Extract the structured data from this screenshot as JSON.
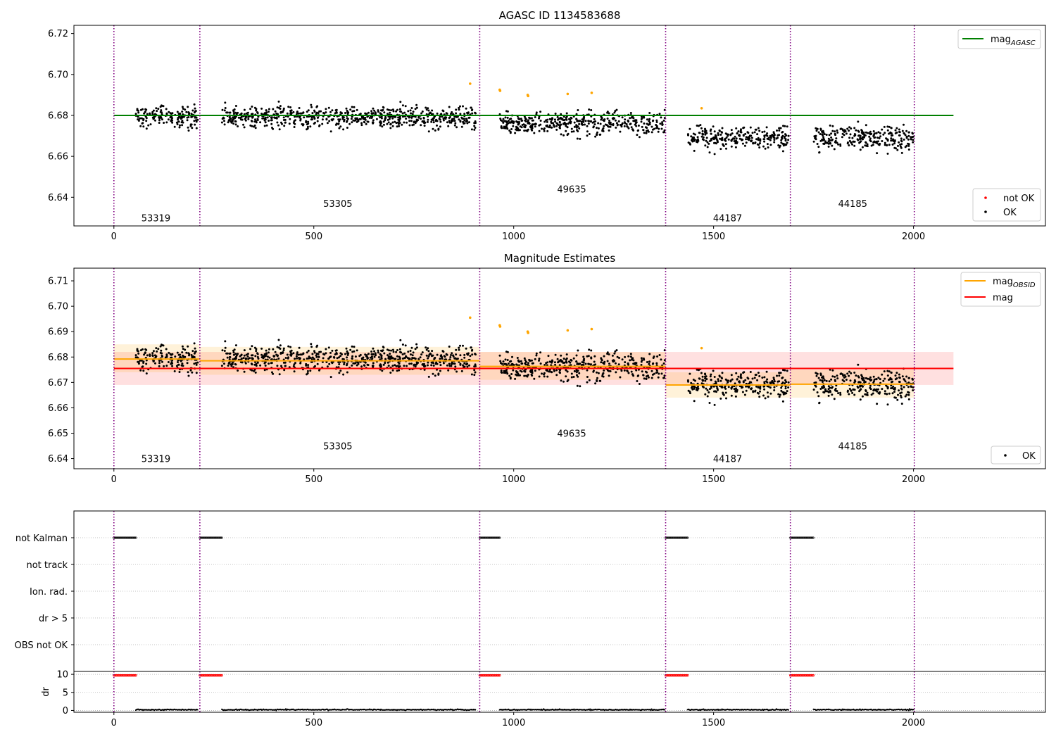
{
  "chart_data": [
    {
      "type": "scatter",
      "title": "AGASC ID 1134583688",
      "xlim": [
        -100,
        2330
      ],
      "ylim": [
        6.626,
        6.724
      ],
      "x_ticks": [
        0,
        500,
        1000,
        1500,
        2000
      ],
      "y_ticks": [
        6.64,
        6.66,
        6.68,
        6.7,
        6.72
      ],
      "obsid_boundaries": [
        0,
        215,
        915,
        1380,
        1692,
        2002
      ],
      "obsid_labels": [
        {
          "text": "53319",
          "x": 105,
          "y": 6.63
        },
        {
          "text": "53305",
          "x": 560,
          "y": 6.637
        },
        {
          "text": "49635",
          "x": 1145,
          "y": 6.644
        },
        {
          "text": "44187",
          "x": 1535,
          "y": 6.63
        },
        {
          "text": "44185",
          "x": 1848,
          "y": 6.637
        }
      ],
      "mag_agasc": {
        "name": "mag_AGASC",
        "value": 6.68,
        "x_range": [
          0,
          2100
        ],
        "color": "#008000"
      },
      "ok_segments": [
        {
          "x": [
            55,
            210
          ],
          "y": 6.679,
          "spread": 0.0045
        },
        {
          "x": [
            270,
            905
          ],
          "y": 6.679,
          "spread": 0.0045
        },
        {
          "x": [
            965,
            1378
          ],
          "y": 6.676,
          "spread": 0.0045
        },
        {
          "x": [
            1435,
            1688
          ],
          "y": 6.669,
          "spread": 0.0045
        },
        {
          "x": [
            1750,
            2000
          ],
          "y": 6.669,
          "spread": 0.0045
        }
      ],
      "not_ok_points": [
        [
          891,
          6.6955
        ],
        [
          965,
          6.6925
        ],
        [
          966,
          6.692
        ],
        [
          1035,
          6.69
        ],
        [
          1036,
          6.6895
        ],
        [
          1135,
          6.6905
        ],
        [
          1195,
          6.691
        ],
        [
          1470,
          6.6835
        ]
      ],
      "legend": [
        {
          "label": "mag",
          "sub": "AGASC",
          "kind": "line",
          "color": "#008000"
        },
        {
          "label": "not OK",
          "kind": "dot",
          "color": "#ff0000"
        },
        {
          "label": "OK",
          "kind": "dot",
          "color": "#000000"
        }
      ]
    },
    {
      "type": "scatter",
      "title": "Magnitude Estimates",
      "xlim": [
        -100,
        2330
      ],
      "ylim": [
        6.636,
        6.715
      ],
      "x_ticks": [
        0,
        500,
        1000,
        1500,
        2000
      ],
      "y_ticks": [
        6.64,
        6.65,
        6.66,
        6.67,
        6.68,
        6.69,
        6.7,
        6.71
      ],
      "obsid_boundaries": [
        0,
        215,
        915,
        1380,
        1692,
        2002
      ],
      "obsid_labels": [
        {
          "text": "53319",
          "x": 105,
          "y": 6.64
        },
        {
          "text": "53305",
          "x": 560,
          "y": 6.645
        },
        {
          "text": "49635",
          "x": 1145,
          "y": 6.65
        },
        {
          "text": "44187",
          "x": 1535,
          "y": 6.64
        },
        {
          "text": "44185",
          "x": 1848,
          "y": 6.645
        }
      ],
      "mag": {
        "name": "mag",
        "value": 6.6755,
        "band": [
          6.669,
          6.682
        ],
        "x_range": [
          0,
          2100
        ],
        "color": "#ff0000"
      },
      "mag_obsid": [
        {
          "x": [
            0,
            215
          ],
          "value": 6.6792,
          "band": [
            6.674,
            6.685
          ]
        },
        {
          "x": [
            215,
            915
          ],
          "value": 6.6785,
          "band": [
            6.673,
            6.684
          ]
        },
        {
          "x": [
            915,
            1380
          ],
          "value": 6.6763,
          "band": [
            6.671,
            6.682
          ]
        },
        {
          "x": [
            1380,
            1692
          ],
          "value": 6.669,
          "band": [
            6.664,
            6.674
          ]
        },
        {
          "x": [
            1692,
            2002
          ],
          "value": 6.6693,
          "band": [
            6.664,
            6.675
          ]
        }
      ],
      "ok_segments": [
        {
          "x": [
            55,
            210
          ],
          "y": 6.679,
          "spread": 0.0045
        },
        {
          "x": [
            270,
            905
          ],
          "y": 6.679,
          "spread": 0.0045
        },
        {
          "x": [
            965,
            1378
          ],
          "y": 6.676,
          "spread": 0.0045
        },
        {
          "x": [
            1435,
            1688
          ],
          "y": 6.669,
          "spread": 0.0045
        },
        {
          "x": [
            1750,
            2000
          ],
          "y": 6.669,
          "spread": 0.0045
        }
      ],
      "not_ok_points": [
        [
          891,
          6.6955
        ],
        [
          965,
          6.6925
        ],
        [
          966,
          6.692
        ],
        [
          1035,
          6.69
        ],
        [
          1036,
          6.6895
        ],
        [
          1135,
          6.6905
        ],
        [
          1195,
          6.691
        ],
        [
          1470,
          6.6835
        ]
      ],
      "legend": [
        {
          "label": "mag",
          "sub": "OBSID",
          "kind": "line",
          "color": "#ffa500"
        },
        {
          "label": "mag",
          "kind": "line",
          "color": "#ff0000"
        },
        {
          "label": "OK",
          "kind": "dot",
          "color": "#000000"
        }
      ]
    },
    {
      "type": "scatter",
      "xlim": [
        -100,
        2330
      ],
      "x_ticks": [
        0,
        500,
        1000,
        1500,
        2000
      ],
      "obsid_boundaries": [
        0,
        215,
        915,
        1380,
        1692,
        2002
      ],
      "flag_rows": [
        "not Kalman",
        "not track",
        "Ion. rad.",
        "dr > 5",
        "OBS not OK"
      ],
      "not_kalman_segments": [
        [
          0,
          55
        ],
        [
          215,
          270
        ],
        [
          915,
          965
        ],
        [
          1380,
          1435
        ],
        [
          1692,
          1750
        ]
      ]
    },
    {
      "type": "scatter",
      "ylabel": "dr",
      "xlim": [
        -100,
        2330
      ],
      "ylim": [
        -0.5,
        10.8
      ],
      "x_ticks": [
        0,
        500,
        1000,
        1500,
        2000
      ],
      "y_ticks": [
        0,
        5,
        10
      ],
      "obsid_boundaries": [
        0,
        215,
        915,
        1380,
        1692,
        2002
      ],
      "high_dr": {
        "value": 9.7,
        "segments": [
          [
            0,
            55
          ],
          [
            215,
            270
          ],
          [
            915,
            965
          ],
          [
            1380,
            1435
          ],
          [
            1692,
            1750
          ]
        ]
      },
      "low_dr": {
        "value": 0.2,
        "segments": [
          [
            55,
            210
          ],
          [
            270,
            905
          ],
          [
            965,
            1378
          ],
          [
            1435,
            1688
          ],
          [
            1750,
            2000
          ]
        ]
      }
    }
  ]
}
